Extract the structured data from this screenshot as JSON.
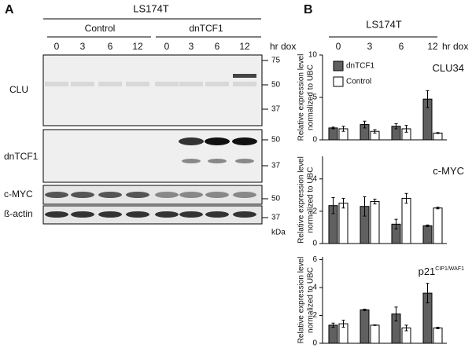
{
  "panel_a": {
    "label": "A",
    "cell_line": "LS174T",
    "groups": [
      "Control",
      "dnTCF1"
    ],
    "times": [
      "0",
      "3",
      "6",
      "12",
      "0",
      "3",
      "6",
      "12"
    ],
    "time_unit": "hr dox",
    "blots": [
      {
        "name": "CLU",
        "markers": [
          "75",
          "50",
          "37"
        ]
      },
      {
        "name": "dnTCF1",
        "markers": [
          "50",
          "37"
        ]
      },
      {
        "name": "c-MYC",
        "markers": [
          "50"
        ]
      },
      {
        "name": "ß-actin",
        "markers": [
          "37"
        ]
      }
    ],
    "marker_unit": "kDa"
  },
  "panel_b": {
    "label": "B",
    "cell_line": "LS174T",
    "time_unit": "hr dox"
  },
  "chart_data": [
    {
      "type": "bar",
      "title": "CLU34",
      "ylabel_lines": [
        "Relative expression level",
        "normalized to UBC"
      ],
      "categories": [
        "0",
        "3",
        "6",
        "12"
      ],
      "ylim": [
        0,
        10
      ],
      "yticks": [
        0,
        5,
        10
      ],
      "legend": "top-left",
      "series": [
        {
          "name": "dnTCF1",
          "color": "#606060",
          "values": [
            1.4,
            1.8,
            1.6,
            4.8
          ],
          "errors": [
            0.1,
            0.4,
            0.3,
            1.0
          ]
        },
        {
          "name": "Control",
          "color": "#ffffff",
          "values": [
            1.3,
            1.0,
            1.3,
            0.8
          ],
          "errors": [
            0.3,
            0.2,
            0.4,
            0.05
          ]
        }
      ]
    },
    {
      "type": "bar",
      "title": "c-MYC",
      "ylabel_lines": [
        "Relative expression level",
        "normalized to UBC"
      ],
      "ylim": [
        0,
        5.4
      ],
      "yticks": [
        0,
        2,
        4
      ],
      "series": [
        {
          "color": "#606060",
          "values": [
            2.35,
            2.3,
            1.2,
            1.1
          ],
          "errors": [
            0.5,
            0.6,
            0.3,
            0.05
          ]
        },
        {
          "color": "#ffffff",
          "values": [
            2.5,
            2.6,
            2.8,
            2.2
          ],
          "errors": [
            0.3,
            0.15,
            0.3,
            0.05
          ]
        }
      ]
    },
    {
      "type": "bar",
      "title": "p21",
      "title_sup": "CIP1/WAF1",
      "ylabel_lines": [
        "Relative expression level",
        "normalized to UBC"
      ],
      "ylim": [
        0,
        6.2
      ],
      "yticks": [
        0,
        2,
        4,
        6
      ],
      "series": [
        {
          "color": "#606060",
          "values": [
            1.3,
            2.4,
            2.1,
            3.6
          ],
          "errors": [
            0.15,
            0.05,
            0.5,
            0.7
          ]
        },
        {
          "color": "#ffffff",
          "values": [
            1.4,
            1.3,
            1.1,
            1.1
          ],
          "errors": [
            0.25,
            0.02,
            0.2,
            0.05
          ]
        }
      ]
    }
  ]
}
